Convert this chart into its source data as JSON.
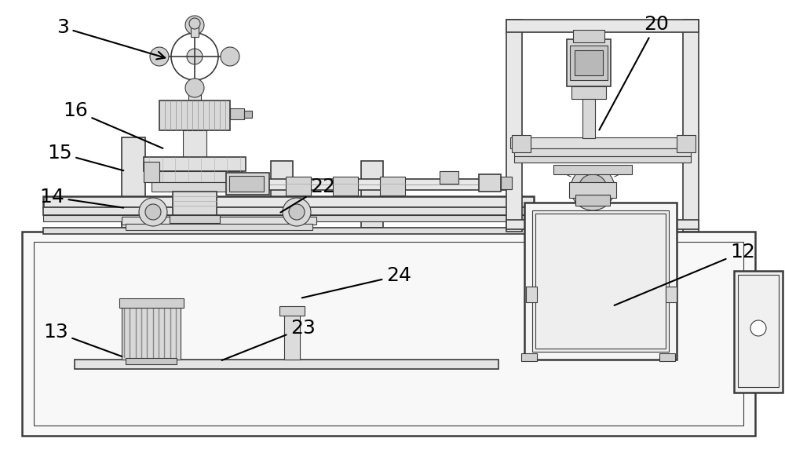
{
  "bg_color": "#ffffff",
  "lc": "#3a3a3a",
  "fc_light": "#f0f0f0",
  "fc_med": "#e0e0e0",
  "fc_dark": "#c8c8c8",
  "fc_xdark": "#a8a8a8",
  "figsize": [
    10.0,
    5.77
  ],
  "dpi": 100
}
